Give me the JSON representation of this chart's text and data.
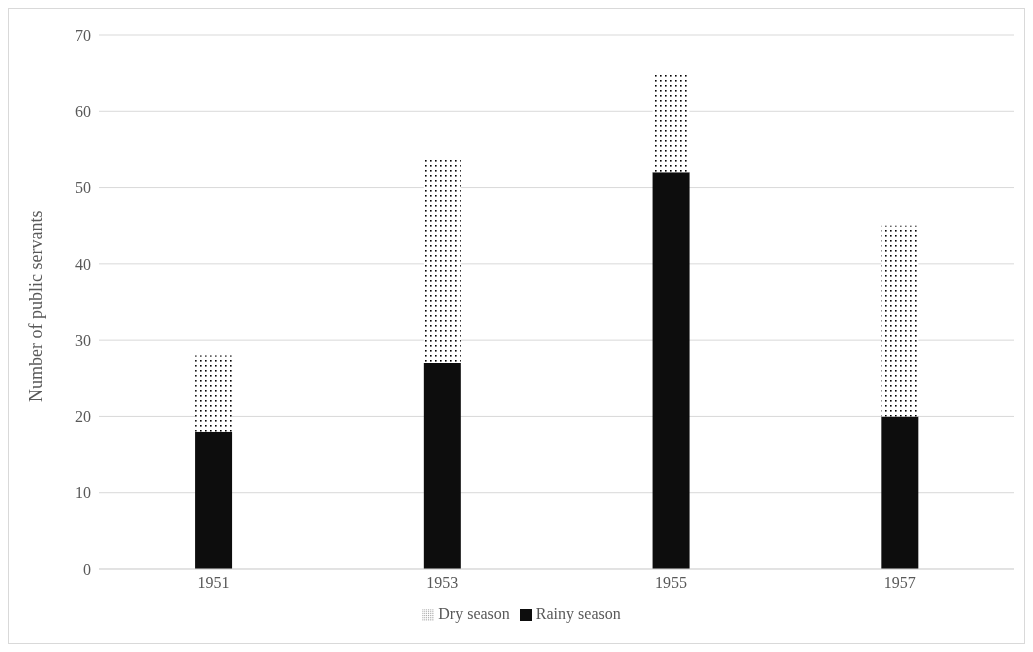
{
  "chart_data": {
    "type": "bar",
    "stacked": true,
    "ylabel": "Number of public servants",
    "categories": [
      "1951",
      "1953",
      "1955",
      "1957"
    ],
    "series": [
      {
        "name": "Rainy season",
        "color": "#0d0d0d",
        "values": [
          18,
          27,
          52,
          20
        ]
      },
      {
        "name": "Dry season",
        "color": "#000000",
        "values": [
          10,
          27,
          13,
          25
        ]
      }
    ],
    "ylim": [
      0,
      70
    ],
    "yticks": [
      0,
      10,
      20,
      30,
      40,
      50,
      60,
      70
    ],
    "grid": "y",
    "legend": "bottom"
  }
}
